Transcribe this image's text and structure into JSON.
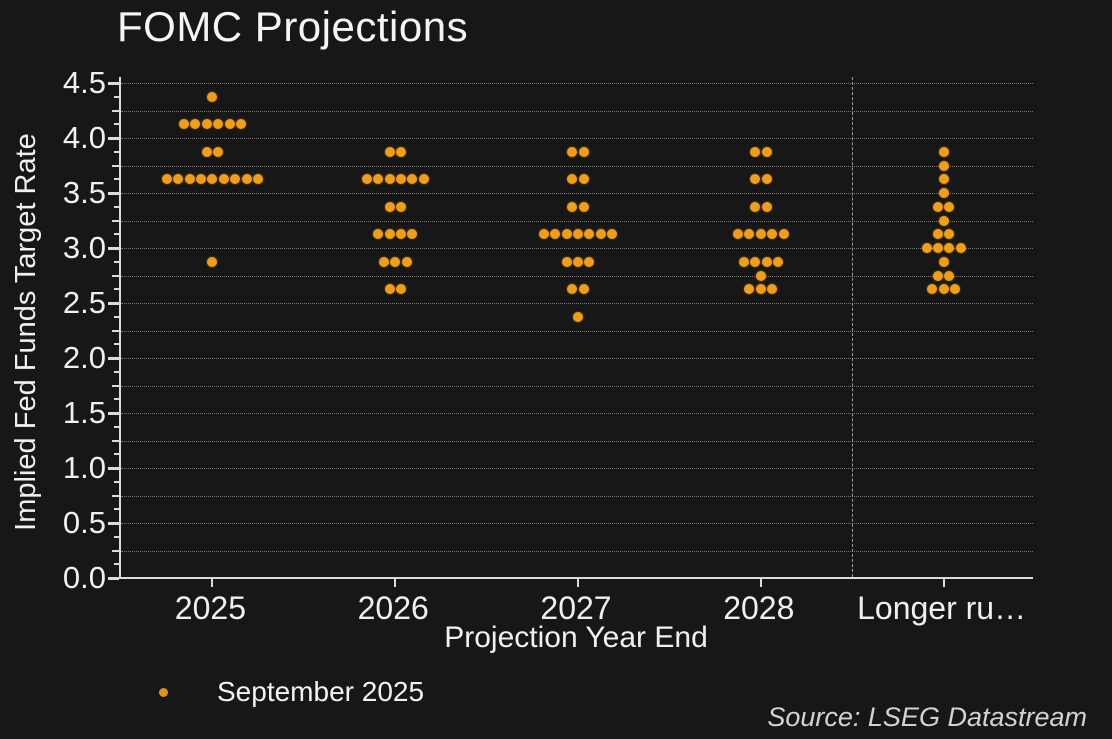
{
  "chart_data": {
    "type": "scatter",
    "subtype": "fomc-dot-plot",
    "title": "FOMC Projections",
    "xlabel": "Projection Year End",
    "ylabel": "Implied Fed Funds Target Rate",
    "legend": [
      "September 2025"
    ],
    "legend_position": "bottom-left",
    "source": "Source: LSEG Datastream",
    "ylim": [
      0.0,
      4.5
    ],
    "y_tick_labels": [
      "0.0",
      "0.5",
      "1.0",
      "1.5",
      "2.0",
      "2.5",
      "3.0",
      "3.5",
      "4.0",
      "4.5"
    ],
    "grid_interval": 0.25,
    "grid_style": "dotted",
    "background_color": "#171717",
    "dot_color": "#f09d18",
    "categories": [
      "2025",
      "2026",
      "2027",
      "2028",
      "Longer run"
    ],
    "category_display": [
      "2025",
      "2026",
      "2027",
      "2028",
      "Longer ru…"
    ],
    "separator_before_category": "Longer run",
    "series": [
      {
        "name": "September 2025",
        "columns": [
          {
            "category": "2025",
            "dots": [
              {
                "rate": 4.375,
                "count": 1
              },
              {
                "rate": 4.125,
                "count": 6
              },
              {
                "rate": 3.875,
                "count": 2
              },
              {
                "rate": 3.625,
                "count": 9
              },
              {
                "rate": 2.875,
                "count": 1
              }
            ]
          },
          {
            "category": "2026",
            "dots": [
              {
                "rate": 3.875,
                "count": 2
              },
              {
                "rate": 3.625,
                "count": 6
              },
              {
                "rate": 3.375,
                "count": 2
              },
              {
                "rate": 3.125,
                "count": 4
              },
              {
                "rate": 2.875,
                "count": 3
              },
              {
                "rate": 2.625,
                "count": 2
              }
            ]
          },
          {
            "category": "2027",
            "dots": [
              {
                "rate": 3.875,
                "count": 2
              },
              {
                "rate": 3.625,
                "count": 2
              },
              {
                "rate": 3.375,
                "count": 2
              },
              {
                "rate": 3.125,
                "count": 7
              },
              {
                "rate": 2.875,
                "count": 3
              },
              {
                "rate": 2.625,
                "count": 2
              },
              {
                "rate": 2.375,
                "count": 1
              }
            ]
          },
          {
            "category": "2028",
            "dots": [
              {
                "rate": 3.875,
                "count": 2
              },
              {
                "rate": 3.625,
                "count": 2
              },
              {
                "rate": 3.375,
                "count": 2
              },
              {
                "rate": 3.125,
                "count": 5
              },
              {
                "rate": 2.875,
                "count": 4
              },
              {
                "rate": 2.75,
                "count": 1
              },
              {
                "rate": 2.625,
                "count": 3
              }
            ]
          },
          {
            "category": "Longer run",
            "dots": [
              {
                "rate": 3.875,
                "count": 1
              },
              {
                "rate": 3.75,
                "count": 1
              },
              {
                "rate": 3.625,
                "count": 1
              },
              {
                "rate": 3.5,
                "count": 1
              },
              {
                "rate": 3.375,
                "count": 2
              },
              {
                "rate": 3.25,
                "count": 1
              },
              {
                "rate": 3.125,
                "count": 2
              },
              {
                "rate": 3.0,
                "count": 4
              },
              {
                "rate": 2.875,
                "count": 1
              },
              {
                "rate": 2.75,
                "count": 2
              },
              {
                "rate": 2.625,
                "count": 3
              }
            ]
          }
        ]
      }
    ]
  }
}
